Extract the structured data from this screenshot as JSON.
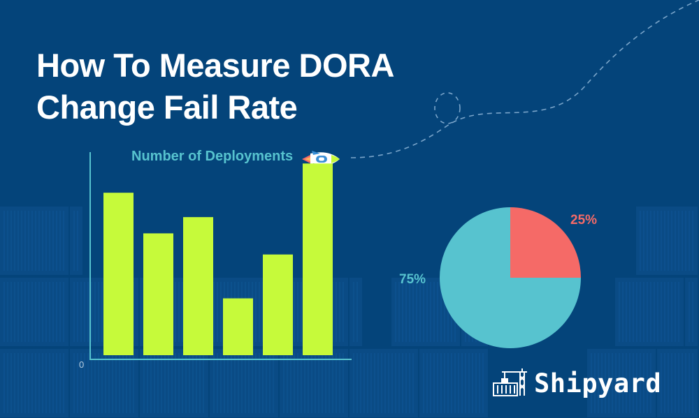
{
  "title": {
    "line1": "How To Measure DORA",
    "line2": "Change Fail Rate"
  },
  "colors": {
    "background": "#04447a",
    "bar": "#c6fa3a",
    "pie_fail": "#f56a67",
    "pie_success": "#57c3cf",
    "axis": "#57c3cf"
  },
  "chart_data": [
    {
      "type": "bar",
      "title": "Number of Deployments",
      "categories": [
        "",
        "",
        "",
        "",
        "",
        ""
      ],
      "values": [
        100,
        75,
        85,
        35,
        62,
        118
      ],
      "ylim": [
        0,
        125
      ],
      "y_tick_labels": [
        "0"
      ],
      "grid": false
    },
    {
      "type": "pie",
      "labels": [
        "25%",
        "75%"
      ],
      "values": [
        25,
        75
      ],
      "colors": [
        "#f56a67",
        "#57c3cf"
      ]
    }
  ],
  "icons": {
    "rocket": "rocket-icon",
    "logo": "shipyard-crane-icon"
  },
  "brand": {
    "name": "Shipyard"
  }
}
